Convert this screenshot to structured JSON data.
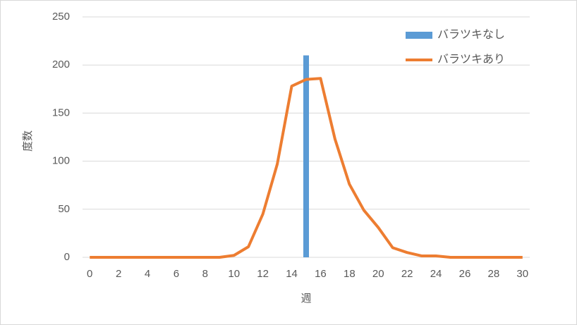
{
  "chart_data": {
    "type": "combo",
    "y_label": "度数",
    "x_label": "週",
    "x": [
      0,
      1,
      2,
      3,
      4,
      5,
      6,
      7,
      8,
      9,
      10,
      11,
      12,
      13,
      14,
      15,
      16,
      17,
      18,
      19,
      20,
      21,
      22,
      23,
      24,
      25,
      26,
      27,
      28,
      29,
      30
    ],
    "xlim": [
      -0.5,
      30.5
    ],
    "xticks": [
      0,
      2,
      4,
      6,
      8,
      10,
      12,
      14,
      16,
      18,
      20,
      22,
      24,
      26,
      28,
      30
    ],
    "ylim": [
      0,
      250
    ],
    "yticks": [
      0,
      50,
      100,
      150,
      200,
      250
    ],
    "grid": true,
    "legend": "top-right",
    "series": [
      {
        "name": "バラツキなし",
        "type": "bar",
        "color": "#5b9bd5",
        "values": [
          0,
          0,
          0,
          0,
          0,
          0,
          0,
          0,
          0,
          0,
          0,
          0,
          0,
          0,
          0,
          210,
          0,
          0,
          0,
          0,
          0,
          0,
          0,
          0,
          0,
          0,
          0,
          0,
          0,
          0,
          0
        ]
      },
      {
        "name": "バラツキあり",
        "type": "line",
        "color": "#ed7d31",
        "values": [
          0,
          0,
          0,
          0,
          0,
          0,
          0,
          0,
          0,
          0,
          2,
          11,
          45,
          97,
          178,
          185,
          186,
          123,
          76,
          49,
          31,
          10,
          5,
          1.5,
          1.5,
          0,
          0,
          0,
          0,
          0,
          0
        ]
      }
    ]
  }
}
